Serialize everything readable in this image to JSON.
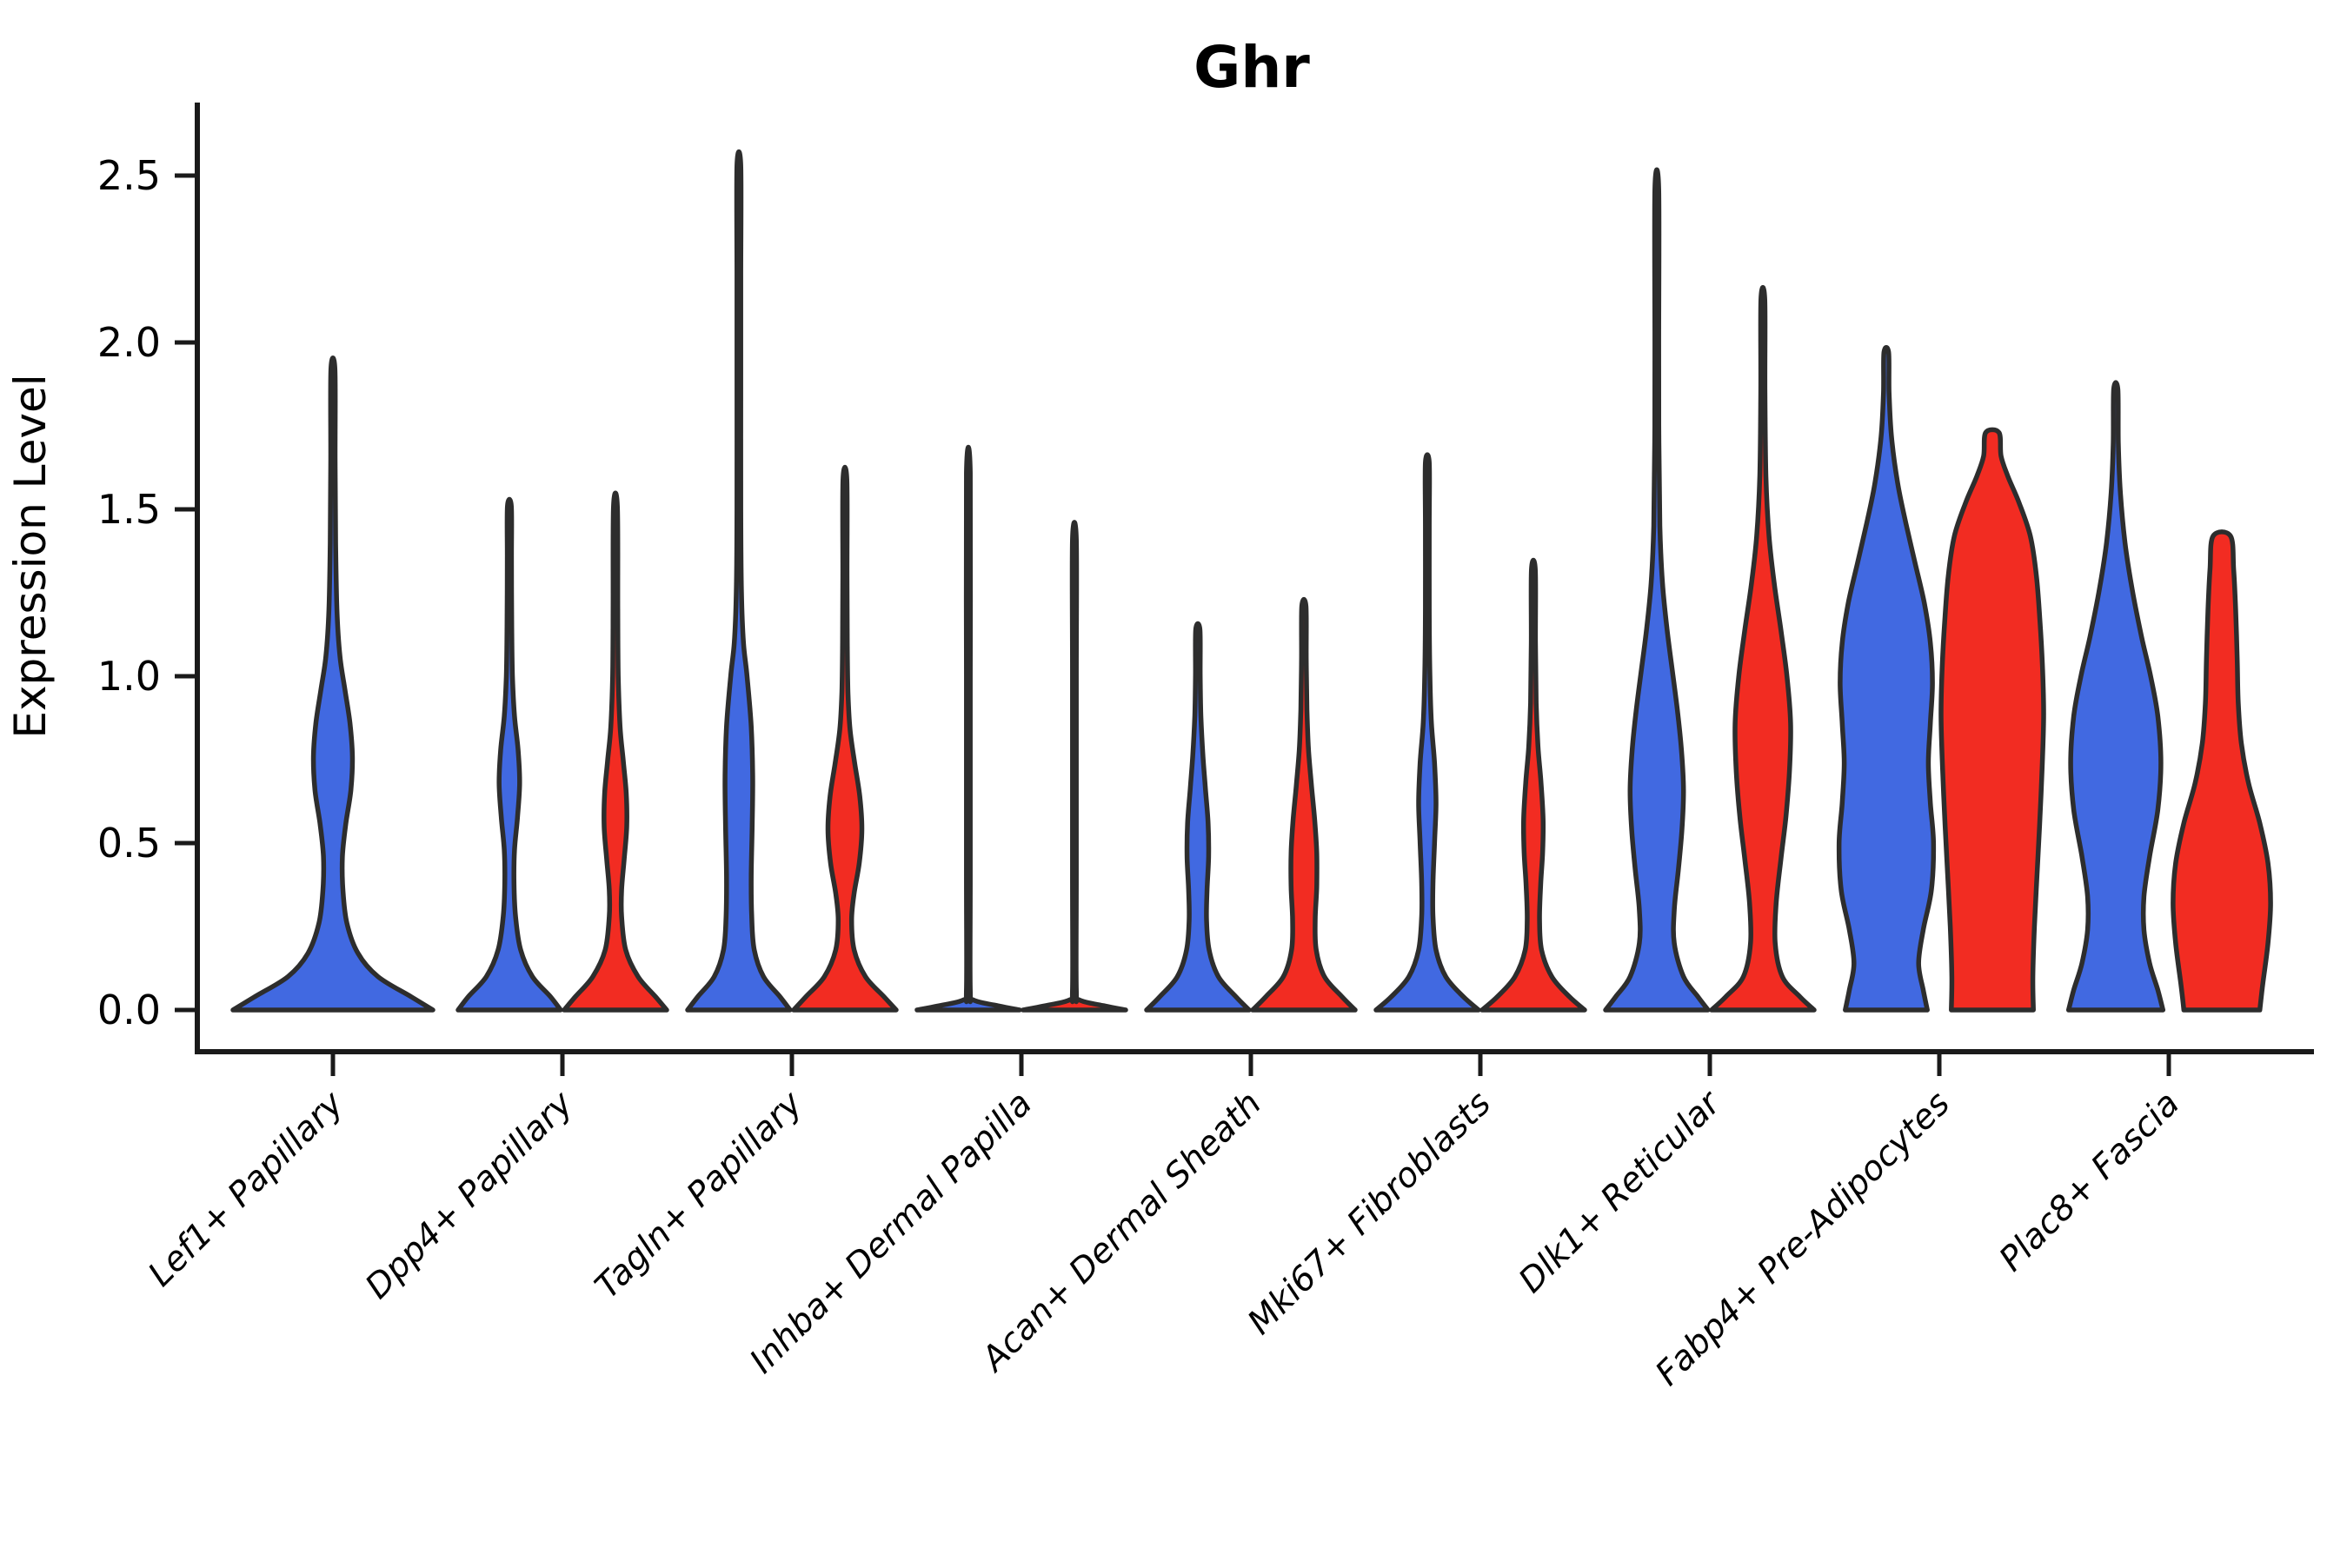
{
  "title": "Ghr",
  "axes": {
    "ylabel": "Expression Level",
    "xlabel": ""
  },
  "colors": {
    "blue_fill": "#4169E1",
    "red_fill": "#F22C22",
    "violin_stroke": "#2D2D2D",
    "axis_color": "#1A1A1A",
    "text_color": "#000000",
    "background": "#FFFFFF"
  },
  "chart_data": {
    "type": "violin",
    "title": "Ghr",
    "xlabel": "",
    "ylabel": "Expression Level",
    "yticks": [
      0.0,
      0.5,
      1.0,
      1.5,
      2.0,
      2.5
    ],
    "ylim": [
      -0.125,
      2.72
    ],
    "grid": false,
    "legend": "none",
    "categories": [
      "Lef1+ Papillary",
      "Dpp4+ Papillary",
      "Tagln+ Papillary",
      "Inhba+ Dermal Papilla",
      "Acan+ Dermal Sheath",
      "Mki67+ Fibroblasts",
      "Dlk1+ Reticular",
      "Fabp4+ Pre-Adipocytes",
      "Plac8+ Fascia"
    ],
    "series": [
      {
        "name": "blue",
        "color_key": "blue_fill",
        "max_expression": [
          1.92,
          1.51,
          2.53,
          1.61,
          1.14,
          1.64,
          2.46,
          1.97,
          1.86
        ]
      },
      {
        "name": "red",
        "color_key": "red_fill",
        "max_expression": [
          null,
          1.51,
          1.59,
          1.41,
          1.21,
          1.32,
          2.13,
          1.73,
          1.42
        ]
      }
    ],
    "violins": [
      {
        "category_index": 0,
        "series": "blue",
        "position": "center",
        "max": 1.92,
        "profile": [
          [
            0,
            1.0
          ],
          [
            0.04,
            0.78
          ],
          [
            0.1,
            0.45
          ],
          [
            0.17,
            0.25
          ],
          [
            0.26,
            0.14
          ],
          [
            0.36,
            0.1
          ],
          [
            0.46,
            0.095
          ],
          [
            0.56,
            0.13
          ],
          [
            0.66,
            0.18
          ],
          [
            0.76,
            0.195
          ],
          [
            0.86,
            0.17
          ],
          [
            0.96,
            0.12
          ],
          [
            1.06,
            0.07
          ],
          [
            1.2,
            0.04
          ],
          [
            1.4,
            0.027
          ],
          [
            1.65,
            0.022
          ],
          [
            1.92,
            0.02
          ]
        ]
      },
      {
        "category_index": 1,
        "series": "blue",
        "position": "left",
        "max": 1.51,
        "profile": [
          [
            0,
            1.0
          ],
          [
            0.04,
            0.8
          ],
          [
            0.1,
            0.45
          ],
          [
            0.18,
            0.22
          ],
          [
            0.28,
            0.12
          ],
          [
            0.38,
            0.09
          ],
          [
            0.48,
            0.1
          ],
          [
            0.58,
            0.16
          ],
          [
            0.68,
            0.2
          ],
          [
            0.78,
            0.17
          ],
          [
            0.88,
            0.1
          ],
          [
            1.0,
            0.06
          ],
          [
            1.15,
            0.045
          ],
          [
            1.35,
            0.04
          ],
          [
            1.51,
            0.038
          ]
        ]
      },
      {
        "category_index": 1,
        "series": "red",
        "position": "right",
        "max": 1.51,
        "profile": [
          [
            0,
            1.0
          ],
          [
            0.04,
            0.78
          ],
          [
            0.1,
            0.44
          ],
          [
            0.18,
            0.2
          ],
          [
            0.28,
            0.12
          ],
          [
            0.36,
            0.12
          ],
          [
            0.45,
            0.17
          ],
          [
            0.55,
            0.22
          ],
          [
            0.65,
            0.21
          ],
          [
            0.75,
            0.15
          ],
          [
            0.85,
            0.09
          ],
          [
            1.0,
            0.055
          ],
          [
            1.2,
            0.045
          ],
          [
            1.51,
            0.038
          ]
        ]
      },
      {
        "category_index": 2,
        "series": "blue",
        "position": "left",
        "max": 2.53,
        "profile": [
          [
            0,
            1.0
          ],
          [
            0.04,
            0.8
          ],
          [
            0.1,
            0.48
          ],
          [
            0.18,
            0.3
          ],
          [
            0.28,
            0.25
          ],
          [
            0.4,
            0.24
          ],
          [
            0.55,
            0.26
          ],
          [
            0.7,
            0.27
          ],
          [
            0.85,
            0.24
          ],
          [
            1.0,
            0.16
          ],
          [
            1.1,
            0.09
          ],
          [
            1.25,
            0.05
          ],
          [
            1.5,
            0.035
          ],
          [
            1.9,
            0.028
          ],
          [
            2.2,
            0.025
          ],
          [
            2.53,
            0.022
          ]
        ]
      },
      {
        "category_index": 2,
        "series": "red",
        "position": "right",
        "max": 1.59,
        "profile": [
          [
            0,
            1.0
          ],
          [
            0.04,
            0.76
          ],
          [
            0.1,
            0.4
          ],
          [
            0.18,
            0.18
          ],
          [
            0.27,
            0.13
          ],
          [
            0.35,
            0.18
          ],
          [
            0.44,
            0.28
          ],
          [
            0.54,
            0.33
          ],
          [
            0.64,
            0.29
          ],
          [
            0.74,
            0.19
          ],
          [
            0.84,
            0.1
          ],
          [
            0.95,
            0.06
          ],
          [
            1.1,
            0.045
          ],
          [
            1.3,
            0.04
          ],
          [
            1.59,
            0.035
          ]
        ]
      },
      {
        "category_index": 3,
        "series": "blue",
        "position": "left",
        "max": 1.61,
        "profile": [
          [
            0,
            1.0
          ],
          [
            0.012,
            0.6
          ],
          [
            0.03,
            0.1
          ],
          [
            0.06,
            0.028
          ],
          [
            0.4,
            0.022
          ],
          [
            1.0,
            0.02
          ],
          [
            1.61,
            0.02
          ]
        ]
      },
      {
        "category_index": 3,
        "series": "red",
        "position": "right",
        "max": 1.41,
        "profile": [
          [
            0,
            1.0
          ],
          [
            0.012,
            0.6
          ],
          [
            0.03,
            0.1
          ],
          [
            0.06,
            0.028
          ],
          [
            0.4,
            0.022
          ],
          [
            1.0,
            0.02
          ],
          [
            1.41,
            0.02
          ]
        ]
      },
      {
        "category_index": 4,
        "series": "blue",
        "position": "left",
        "max": 1.14,
        "profile": [
          [
            0,
            1.0
          ],
          [
            0.04,
            0.74
          ],
          [
            0.1,
            0.4
          ],
          [
            0.18,
            0.22
          ],
          [
            0.27,
            0.17
          ],
          [
            0.36,
            0.18
          ],
          [
            0.46,
            0.21
          ],
          [
            0.56,
            0.2
          ],
          [
            0.66,
            0.15
          ],
          [
            0.76,
            0.1
          ],
          [
            0.88,
            0.06
          ],
          [
            1.0,
            0.045
          ],
          [
            1.14,
            0.04
          ]
        ]
      },
      {
        "category_index": 4,
        "series": "red",
        "position": "right",
        "max": 1.21,
        "profile": [
          [
            0,
            1.0
          ],
          [
            0.04,
            0.74
          ],
          [
            0.1,
            0.4
          ],
          [
            0.18,
            0.24
          ],
          [
            0.27,
            0.22
          ],
          [
            0.37,
            0.25
          ],
          [
            0.47,
            0.25
          ],
          [
            0.57,
            0.21
          ],
          [
            0.67,
            0.15
          ],
          [
            0.78,
            0.09
          ],
          [
            0.9,
            0.06
          ],
          [
            1.05,
            0.045
          ],
          [
            1.21,
            0.04
          ]
        ]
      },
      {
        "category_index": 5,
        "series": "blue",
        "position": "left",
        "max": 1.64,
        "profile": [
          [
            0,
            1.0
          ],
          [
            0.04,
            0.7
          ],
          [
            0.1,
            0.36
          ],
          [
            0.18,
            0.17
          ],
          [
            0.28,
            0.11
          ],
          [
            0.38,
            0.11
          ],
          [
            0.5,
            0.14
          ],
          [
            0.62,
            0.17
          ],
          [
            0.74,
            0.14
          ],
          [
            0.86,
            0.08
          ],
          [
            1.0,
            0.05
          ],
          [
            1.2,
            0.035
          ],
          [
            1.45,
            0.03
          ],
          [
            1.64,
            0.028
          ]
        ]
      },
      {
        "category_index": 5,
        "series": "red",
        "position": "right",
        "max": 1.32,
        "profile": [
          [
            0,
            1.0
          ],
          [
            0.04,
            0.7
          ],
          [
            0.1,
            0.36
          ],
          [
            0.18,
            0.16
          ],
          [
            0.27,
            0.12
          ],
          [
            0.37,
            0.14
          ],
          [
            0.47,
            0.18
          ],
          [
            0.57,
            0.19
          ],
          [
            0.68,
            0.15
          ],
          [
            0.79,
            0.09
          ],
          [
            0.92,
            0.055
          ],
          [
            1.1,
            0.04
          ],
          [
            1.32,
            0.032
          ]
        ]
      },
      {
        "category_index": 6,
        "series": "blue",
        "position": "left",
        "max": 2.46,
        "profile": [
          [
            0,
            1.0
          ],
          [
            0.04,
            0.8
          ],
          [
            0.1,
            0.52
          ],
          [
            0.2,
            0.34
          ],
          [
            0.3,
            0.34
          ],
          [
            0.42,
            0.42
          ],
          [
            0.54,
            0.49
          ],
          [
            0.66,
            0.52
          ],
          [
            0.78,
            0.48
          ],
          [
            0.9,
            0.4
          ],
          [
            1.02,
            0.3
          ],
          [
            1.14,
            0.2
          ],
          [
            1.28,
            0.11
          ],
          [
            1.45,
            0.06
          ],
          [
            1.7,
            0.04
          ],
          [
            2.0,
            0.03
          ],
          [
            2.46,
            0.025
          ]
        ]
      },
      {
        "category_index": 6,
        "series": "red",
        "position": "right",
        "max": 2.13,
        "profile": [
          [
            0,
            1.0
          ],
          [
            0.04,
            0.72
          ],
          [
            0.1,
            0.38
          ],
          [
            0.2,
            0.24
          ],
          [
            0.32,
            0.26
          ],
          [
            0.45,
            0.35
          ],
          [
            0.58,
            0.45
          ],
          [
            0.72,
            0.52
          ],
          [
            0.86,
            0.54
          ],
          [
            1.0,
            0.47
          ],
          [
            1.14,
            0.35
          ],
          [
            1.28,
            0.22
          ],
          [
            1.42,
            0.12
          ],
          [
            1.6,
            0.06
          ],
          [
            1.85,
            0.04
          ],
          [
            2.13,
            0.03
          ]
        ]
      },
      {
        "category_index": 7,
        "series": "blue",
        "position": "left",
        "max": 1.97,
        "profile": [
          [
            0,
            0.8
          ],
          [
            0.06,
            0.72
          ],
          [
            0.14,
            0.63
          ],
          [
            0.24,
            0.72
          ],
          [
            0.36,
            0.88
          ],
          [
            0.5,
            0.92
          ],
          [
            0.62,
            0.86
          ],
          [
            0.74,
            0.82
          ],
          [
            0.86,
            0.86
          ],
          [
            0.98,
            0.9
          ],
          [
            1.1,
            0.86
          ],
          [
            1.22,
            0.74
          ],
          [
            1.34,
            0.56
          ],
          [
            1.46,
            0.38
          ],
          [
            1.58,
            0.22
          ],
          [
            1.72,
            0.1
          ],
          [
            1.85,
            0.055
          ],
          [
            1.97,
            0.045
          ]
        ]
      },
      {
        "category_index": 7,
        "series": "red",
        "position": "right",
        "max": 1.73,
        "profile": [
          [
            0,
            0.8
          ],
          [
            0.1,
            0.79
          ],
          [
            0.25,
            0.82
          ],
          [
            0.4,
            0.87
          ],
          [
            0.55,
            0.92
          ],
          [
            0.72,
            0.97
          ],
          [
            0.88,
            1.0
          ],
          [
            1.02,
            0.98
          ],
          [
            1.16,
            0.93
          ],
          [
            1.3,
            0.86
          ],
          [
            1.42,
            0.74
          ],
          [
            1.52,
            0.52
          ],
          [
            1.6,
            0.3
          ],
          [
            1.66,
            0.17
          ],
          [
            1.73,
            0.13
          ]
        ]
      },
      {
        "category_index": 8,
        "series": "blue",
        "position": "left",
        "max": 1.86,
        "profile": [
          [
            0,
            0.92
          ],
          [
            0.06,
            0.82
          ],
          [
            0.14,
            0.66
          ],
          [
            0.24,
            0.55
          ],
          [
            0.34,
            0.55
          ],
          [
            0.46,
            0.66
          ],
          [
            0.6,
            0.82
          ],
          [
            0.74,
            0.88
          ],
          [
            0.88,
            0.82
          ],
          [
            1.0,
            0.68
          ],
          [
            1.12,
            0.5
          ],
          [
            1.26,
            0.32
          ],
          [
            1.4,
            0.18
          ],
          [
            1.55,
            0.09
          ],
          [
            1.7,
            0.05
          ],
          [
            1.86,
            0.04
          ]
        ]
      },
      {
        "category_index": 8,
        "series": "red",
        "position": "right",
        "max": 1.42,
        "profile": [
          [
            0,
            0.74
          ],
          [
            0.08,
            0.8
          ],
          [
            0.2,
            0.9
          ],
          [
            0.32,
            0.95
          ],
          [
            0.44,
            0.9
          ],
          [
            0.56,
            0.74
          ],
          [
            0.68,
            0.52
          ],
          [
            0.8,
            0.38
          ],
          [
            0.92,
            0.32
          ],
          [
            1.05,
            0.3
          ],
          [
            1.2,
            0.27
          ],
          [
            1.32,
            0.23
          ],
          [
            1.42,
            0.17
          ]
        ]
      }
    ]
  }
}
